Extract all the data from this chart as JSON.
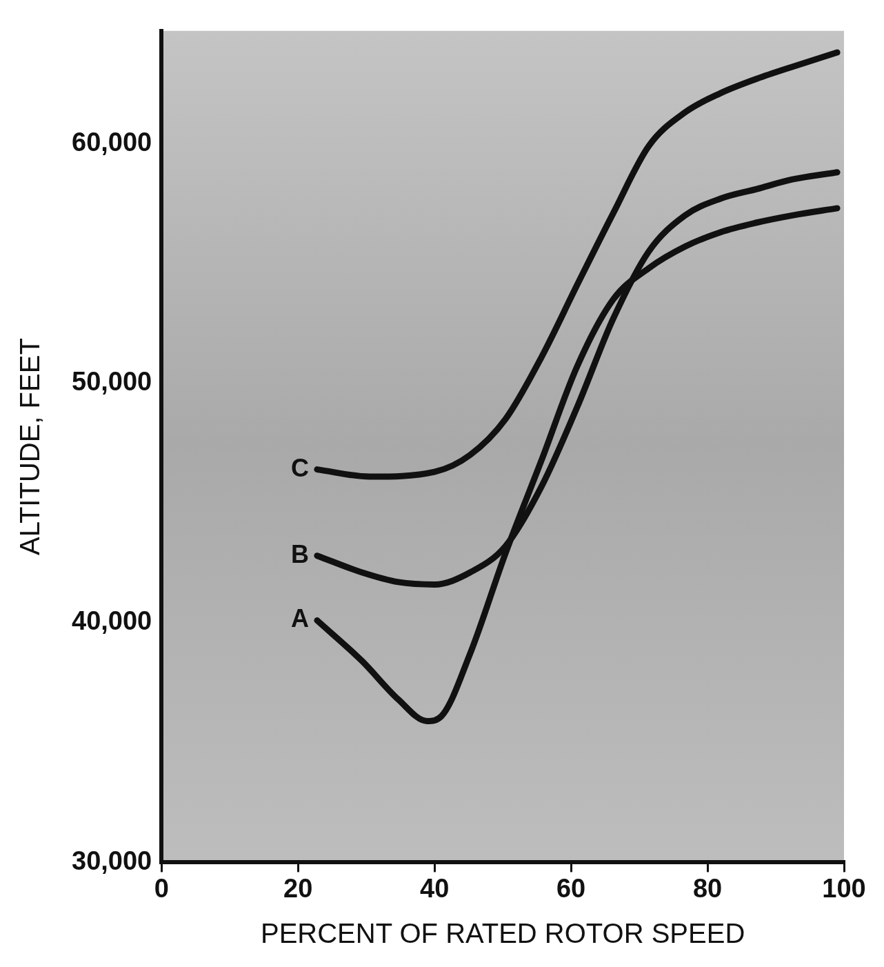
{
  "chart_data": {
    "type": "line",
    "xlabel": "PERCENT OF RATED ROTOR SPEED",
    "ylabel": "ALTITUDE, FEET",
    "xlim": [
      0,
      100
    ],
    "xticks": [
      0,
      20,
      40,
      60,
      80,
      100
    ],
    "ylim": [
      30000,
      64700
    ],
    "yticks": [
      {
        "value": 30000,
        "label": "30,000"
      },
      {
        "value": 40000,
        "label": "40,000"
      },
      {
        "value": 50000,
        "label": "50,000"
      },
      {
        "value": 60000,
        "label": "60,000"
      }
    ],
    "grid": false,
    "legend": false,
    "marker": "none",
    "line_style": "solid",
    "series": [
      {
        "name": "A",
        "color": "#111111",
        "x": [
          22.8,
          29.4,
          34.7,
          38.9,
          41,
          45.2,
          50.4,
          55.7,
          60.9,
          66.2,
          71.4,
          76.7,
          81.9,
          87.2,
          92.4,
          99
        ],
        "values": [
          40100,
          38400,
          36800,
          35900,
          36100,
          38700,
          42900,
          46800,
          50700,
          53500,
          54800,
          55700,
          56300,
          56700,
          57000,
          57300
        ]
      },
      {
        "name": "B",
        "color": "#111111",
        "x": [
          22.8,
          29.4,
          34.7,
          40,
          45.2,
          50.4,
          55.7,
          60.9,
          66.2,
          71.4,
          76.7,
          81.9,
          87.2,
          92.4,
          99
        ],
        "values": [
          42800,
          42100,
          41700,
          41600,
          42100,
          43200,
          45700,
          49000,
          52700,
          55500,
          57000,
          57700,
          58100,
          58500,
          58800
        ]
      },
      {
        "name": "C",
        "color": "#111111",
        "x": [
          22.8,
          30.5,
          40,
          45.2,
          50.4,
          55.7,
          60.9,
          66.2,
          71.4,
          76.7,
          81.9,
          87.2,
          92.4,
          99
        ],
        "values": [
          46400,
          46100,
          46300,
          47000,
          48500,
          51100,
          54100,
          57100,
          59900,
          61300,
          62100,
          62700,
          63200,
          63800
        ]
      }
    ]
  }
}
